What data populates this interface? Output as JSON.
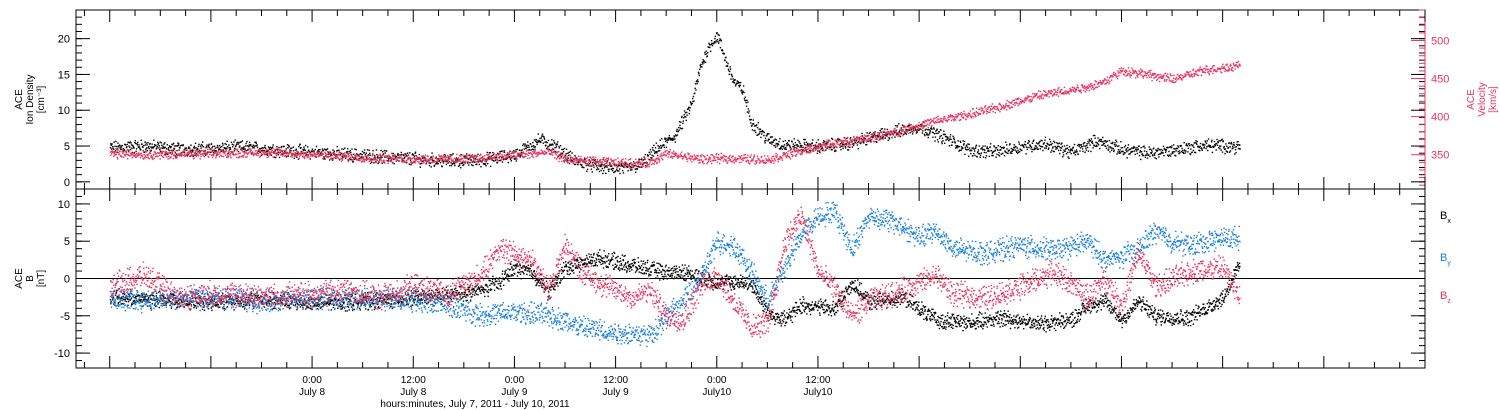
{
  "chart_data": [
    {
      "type": "scatter",
      "panel": "top",
      "left_axis": {
        "label_lines": [
          "ACE",
          "Ion Density",
          "[cm⁻³]"
        ],
        "ylim": [
          -1,
          24
        ],
        "major_ticks": [
          0,
          5,
          10,
          15,
          20
        ],
        "tick_labels": [
          "0",
          "5",
          "10",
          "15",
          "20"
        ],
        "color": "#000000"
      },
      "right_axis": {
        "label_lines": [
          "ACE",
          "Velocity",
          "[km/s]"
        ],
        "ylim": [
          305,
          540
        ],
        "major_ticks": [
          350,
          400,
          450,
          500
        ],
        "tick_labels": [
          "350",
          "400",
          "450",
          "500"
        ],
        "color": "#e8345e"
      },
      "series": [
        {
          "axis": "left",
          "color": "#000000",
          "points": [
            [
              0,
              4.8
            ],
            [
              4,
              5.1
            ],
            [
              8,
              4.6
            ],
            [
              12,
              4.7
            ],
            [
              16,
              4.9
            ],
            [
              20,
              4.5
            ],
            [
              24,
              4.2
            ],
            [
              28,
              3.9
            ],
            [
              32,
              3.6
            ],
            [
              36,
              3.3
            ],
            [
              40,
              3.0
            ],
            [
              44,
              3.1
            ],
            [
              48,
              3.8
            ],
            [
              51,
              6.0
            ],
            [
              53,
              4.8
            ],
            [
              55,
              3.0
            ],
            [
              58,
              2.2
            ],
            [
              61,
              1.9
            ],
            [
              63,
              2.5
            ],
            [
              65,
              4.8
            ],
            [
              67,
              6.5
            ],
            [
              69,
              11
            ],
            [
              70,
              16
            ],
            [
              71,
              19
            ],
            [
              72,
              20.5
            ],
            [
              73,
              17
            ],
            [
              74,
              14
            ],
            [
              75,
              13
            ],
            [
              76,
              8.5
            ],
            [
              78,
              6.0
            ],
            [
              80,
              5.2
            ],
            [
              84,
              5.0
            ],
            [
              88,
              5.5
            ],
            [
              92,
              6.8
            ],
            [
              96,
              7.8
            ],
            [
              99,
              6.2
            ],
            [
              102,
              4.5
            ],
            [
              105,
              4.3
            ],
            [
              108,
              5.0
            ],
            [
              111,
              5.4
            ],
            [
              114,
              4.2
            ],
            [
              117,
              5.8
            ],
            [
              120,
              4.6
            ],
            [
              123,
              4.1
            ],
            [
              126,
              4.5
            ],
            [
              130,
              5.2
            ],
            [
              134,
              5.0
            ]
          ]
        },
        {
          "axis": "right",
          "color": "#e8345e",
          "points": [
            [
              0,
              352
            ],
            [
              6,
              351
            ],
            [
              12,
              352
            ],
            [
              18,
              354
            ],
            [
              24,
              351
            ],
            [
              30,
              347
            ],
            [
              36,
              345
            ],
            [
              42,
              345
            ],
            [
              48,
              350
            ],
            [
              52,
              354
            ],
            [
              54,
              345
            ],
            [
              56,
              343
            ],
            [
              60,
              340
            ],
            [
              64,
              340
            ],
            [
              66,
              352
            ],
            [
              70,
              345
            ],
            [
              74,
              346
            ],
            [
              78,
              344
            ],
            [
              82,
              356
            ],
            [
              86,
              366
            ],
            [
              90,
              372
            ],
            [
              94,
              383
            ],
            [
              98,
              395
            ],
            [
              102,
              404
            ],
            [
              106,
              415
            ],
            [
              110,
              428
            ],
            [
              114,
              436
            ],
            [
              116,
              440
            ],
            [
              118,
              447
            ],
            [
              120,
              461
            ],
            [
              122,
              458
            ],
            [
              126,
              450
            ],
            [
              130,
              462
            ],
            [
              134,
              468
            ]
          ]
        }
      ]
    },
    {
      "type": "scatter",
      "panel": "bottom",
      "left_axis": {
        "label_lines": [
          "ACE",
          "B",
          "[nT]"
        ],
        "ylim": [
          -12,
          12
        ],
        "major_ticks": [
          -10,
          -5,
          0,
          5,
          10
        ],
        "tick_labels": [
          "-10",
          "-5",
          "0",
          "5",
          "10"
        ],
        "color": "#000000"
      },
      "legend": [
        {
          "label": "B",
          "sub": "x",
          "color": "#000000"
        },
        {
          "label": "B",
          "sub": "y",
          "color": "#1a7fd8"
        },
        {
          "label": "B",
          "sub": "z",
          "color": "#e8345e"
        }
      ],
      "series": [
        {
          "name": "Bx",
          "color": "#000000",
          "points": [
            [
              0,
              -2.5
            ],
            [
              6,
              -2.8
            ],
            [
              12,
              -3.0
            ],
            [
              18,
              -2.8
            ],
            [
              24,
              -3.2
            ],
            [
              30,
              -3.0
            ],
            [
              36,
              -2.6
            ],
            [
              40,
              -2.2
            ],
            [
              44,
              -1.5
            ],
            [
              46,
              -0.5
            ],
            [
              48,
              1.5
            ],
            [
              50,
              1.0
            ],
            [
              52,
              -1.8
            ],
            [
              54,
              1.5
            ],
            [
              58,
              2.8
            ],
            [
              62,
              1.8
            ],
            [
              66,
              0.8
            ],
            [
              68,
              1.0
            ],
            [
              72,
              -0.5
            ],
            [
              76,
              -0.5
            ],
            [
              78,
              -4.5
            ],
            [
              80,
              -5.5
            ],
            [
              82,
              -3.5
            ],
            [
              86,
              -4.0
            ],
            [
              88,
              -0.5
            ],
            [
              90,
              -3.0
            ],
            [
              94,
              -2.5
            ],
            [
              98,
              -5.5
            ],
            [
              102,
              -5.8
            ],
            [
              106,
              -5.2
            ],
            [
              110,
              -6.0
            ],
            [
              114,
              -5.5
            ],
            [
              116,
              -3.5
            ],
            [
              118,
              -3.0
            ],
            [
              120,
              -5.5
            ],
            [
              122,
              -3.0
            ],
            [
              124,
              -5.0
            ],
            [
              128,
              -5.2
            ],
            [
              132,
              -2.5
            ],
            [
              134,
              2.0
            ]
          ]
        },
        {
          "name": "By",
          "color": "#1a7fd8",
          "points": [
            [
              0,
              -2.8
            ],
            [
              6,
              -2.8
            ],
            [
              12,
              -2.5
            ],
            [
              18,
              -3.0
            ],
            [
              24,
              -2.6
            ],
            [
              30,
              -2.5
            ],
            [
              36,
              -2.8
            ],
            [
              40,
              -3.5
            ],
            [
              44,
              -4.8
            ],
            [
              48,
              -4.5
            ],
            [
              52,
              -4.8
            ],
            [
              56,
              -6.5
            ],
            [
              60,
              -7.2
            ],
            [
              64,
              -7.5
            ],
            [
              66,
              -5.0
            ],
            [
              68,
              -3.0
            ],
            [
              70,
              0.0
            ],
            [
              72,
              5.0
            ],
            [
              74,
              4.5
            ],
            [
              76,
              1.0
            ],
            [
              78,
              -3.0
            ],
            [
              80,
              1.5
            ],
            [
              82,
              6.0
            ],
            [
              84,
              8.5
            ],
            [
              86,
              9.0
            ],
            [
              88,
              4.0
            ],
            [
              90,
              8.5
            ],
            [
              92,
              8.0
            ],
            [
              94,
              7.0
            ],
            [
              96,
              5.5
            ],
            [
              98,
              6.5
            ],
            [
              100,
              4.0
            ],
            [
              104,
              3.5
            ],
            [
              108,
              4.5
            ],
            [
              112,
              3.8
            ],
            [
              116,
              5.0
            ],
            [
              118,
              2.5
            ],
            [
              120,
              3.0
            ],
            [
              122,
              4.0
            ],
            [
              124,
              6.5
            ],
            [
              126,
              5.0
            ],
            [
              128,
              4.5
            ],
            [
              132,
              5.5
            ],
            [
              134,
              5.5
            ]
          ]
        },
        {
          "name": "Bz",
          "color": "#e8345e",
          "points": [
            [
              0,
              -1.0
            ],
            [
              4,
              0.5
            ],
            [
              8,
              -2.5
            ],
            [
              12,
              -2.0
            ],
            [
              16,
              -2.2
            ],
            [
              20,
              -2.3
            ],
            [
              24,
              -2.0
            ],
            [
              28,
              -1.5
            ],
            [
              32,
              -2.5
            ],
            [
              36,
              -1.0
            ],
            [
              40,
              -2.0
            ],
            [
              44,
              0.5
            ],
            [
              46,
              4.0
            ],
            [
              48,
              3.5
            ],
            [
              50,
              2.5
            ],
            [
              52,
              -1.5
            ],
            [
              54,
              4.5
            ],
            [
              56,
              1.0
            ],
            [
              58,
              -0.5
            ],
            [
              60,
              -1.5
            ],
            [
              62,
              -2.5
            ],
            [
              64,
              -1.5
            ],
            [
              66,
              -5.0
            ],
            [
              68,
              -5.5
            ],
            [
              70,
              -1.0
            ],
            [
              72,
              0.5
            ],
            [
              74,
              -3.0
            ],
            [
              76,
              -6.5
            ],
            [
              78,
              -6.0
            ],
            [
              80,
              5.0
            ],
            [
              82,
              8.5
            ],
            [
              84,
              1.0
            ],
            [
              86,
              -1.5
            ],
            [
              88,
              -5.0
            ],
            [
              90,
              -3.0
            ],
            [
              94,
              -1.5
            ],
            [
              98,
              0.5
            ],
            [
              100,
              -2.0
            ],
            [
              104,
              -2.5
            ],
            [
              108,
              -1.0
            ],
            [
              112,
              1.0
            ],
            [
              116,
              -2.5
            ],
            [
              118,
              0.0
            ],
            [
              120,
              -3.5
            ],
            [
              122,
              3.5
            ],
            [
              124,
              -1.0
            ],
            [
              128,
              1.0
            ],
            [
              132,
              1.5
            ],
            [
              134,
              -2.5
            ]
          ]
        }
      ]
    }
  ],
  "x_axis": {
    "range_hours": [
      -4,
      156
    ],
    "tick_every_hours": 3,
    "major_every_hours": 12,
    "ticks": [
      {
        "hour": 24,
        "time": "0:00",
        "date": "July 8"
      },
      {
        "hour": 36,
        "time": "12:00",
        "date": "July 8"
      },
      {
        "hour": 48,
        "time": "0:00",
        "date": "July 9"
      },
      {
        "hour": 60,
        "time": "12:00",
        "date": "July 9"
      },
      {
        "hour": 72,
        "time": "0:00",
        "date": "July10"
      },
      {
        "hour": 84,
        "time": "12:00",
        "date": "July10"
      }
    ],
    "title": "hours:minutes, July  7, 2011 - July 10, 2011"
  }
}
